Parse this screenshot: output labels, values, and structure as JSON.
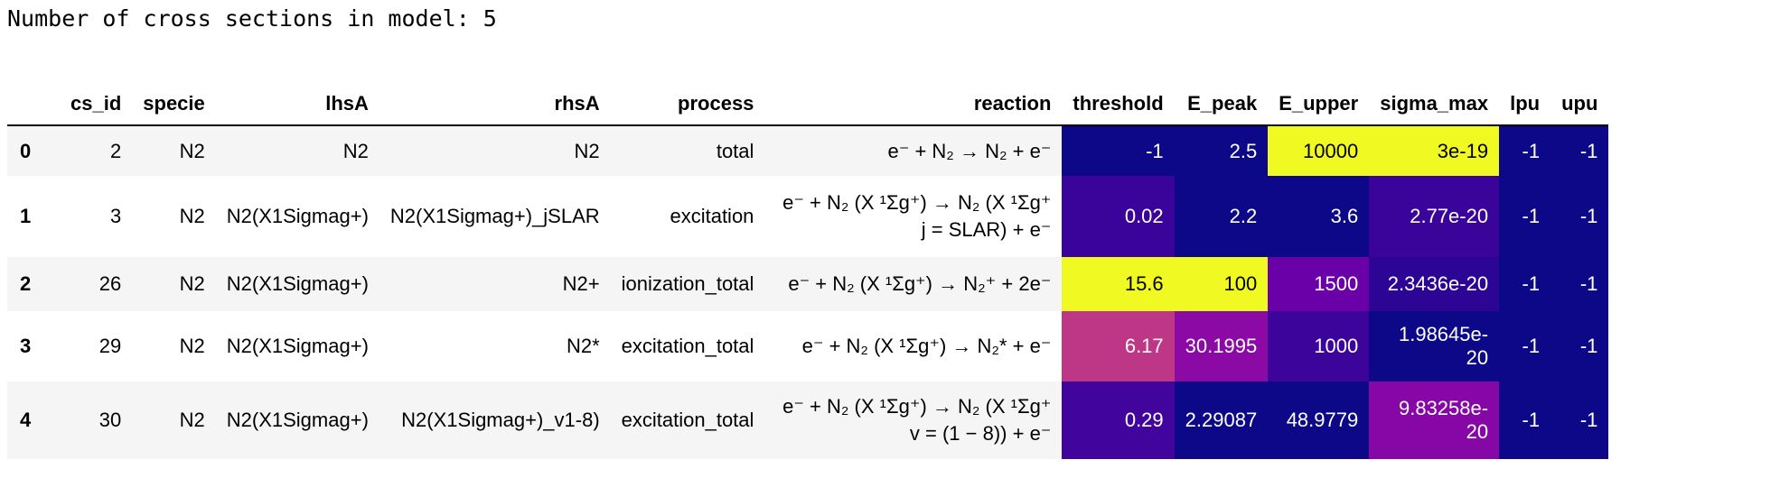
{
  "output": {
    "text": "Number of cross sections in model: 5"
  },
  "table": {
    "columns": [
      "",
      "cs_id",
      "specie",
      "lhsA",
      "rhsA",
      "process",
      "reaction",
      "threshold",
      "E_peak",
      "E_upper",
      "sigma_max",
      "lpu",
      "upu"
    ],
    "rows": [
      {
        "index": "0",
        "cs_id": "2",
        "specie": "N2",
        "lhsA": "N2",
        "rhsA": "N2",
        "process": "total",
        "reaction": "e⁻ + N₂ → N₂ + e⁻",
        "threshold": "-1",
        "E_peak": "2.5",
        "E_upper": "10000",
        "sigma_max": "3e-19",
        "lpu": "-1",
        "upu": "-1"
      },
      {
        "index": "1",
        "cs_id": "3",
        "specie": "N2",
        "lhsA": "N2(X1Sigmag+)",
        "rhsA": "N2(X1Sigmag+)_jSLAR",
        "process": "excitation",
        "reaction": "e⁻ + N₂ (X ¹Σg⁺) → N₂ (X ¹Σg⁺ j = SLAR) + e⁻",
        "threshold": "0.02",
        "E_peak": "2.2",
        "E_upper": "3.6",
        "sigma_max": "2.77e-20",
        "lpu": "-1",
        "upu": "-1"
      },
      {
        "index": "2",
        "cs_id": "26",
        "specie": "N2",
        "lhsA": "N2(X1Sigmag+)",
        "rhsA": "N2+",
        "process": "ionization_total",
        "reaction": "e⁻ + N₂ (X ¹Σg⁺) → N₂⁺ + 2e⁻",
        "threshold": "15.6",
        "E_peak": "100",
        "E_upper": "1500",
        "sigma_max": "2.3436e-20",
        "lpu": "-1",
        "upu": "-1"
      },
      {
        "index": "3",
        "cs_id": "29",
        "specie": "N2",
        "lhsA": "N2(X1Sigmag+)",
        "rhsA": "N2*",
        "process": "excitation_total",
        "reaction": "e⁻ + N₂ (X ¹Σg⁺) → N₂* + e⁻",
        "threshold": "6.17",
        "E_peak": "30.1995",
        "E_upper": "1000",
        "sigma_max": "1.98645e-20",
        "lpu": "-1",
        "upu": "-1"
      },
      {
        "index": "4",
        "cs_id": "30",
        "specie": "N2",
        "lhsA": "N2(X1Sigmag+)",
        "rhsA": "N2(X1Sigmag+)_v1-8)",
        "process": "excitation_total",
        "reaction": "e⁻ + N₂ (X ¹Σg⁺) → N₂ (X ¹Σg⁺ v = (1 − 8)) + e⁻",
        "threshold": "0.29",
        "E_peak": "2.29087",
        "E_upper": "48.9779",
        "sigma_max": "9.83258e-20",
        "lpu": "-1",
        "upu": "-1"
      }
    ]
  },
  "heatmap_colors": {
    "threshold": [
      "#0d0887",
      "#3a049a",
      "#f0f921",
      "#bd3786",
      "#41049d"
    ],
    "E_peak": [
      "#0d0887",
      "#0d0887",
      "#f0f921",
      "#8b0aa5",
      "#0d0887"
    ],
    "E_upper": [
      "#f0f921",
      "#0d0887",
      "#6a00a8",
      "#3d049b",
      "#0d0887"
    ],
    "sigma_max": [
      "#f0f921",
      "#3a049a",
      "#2c0594",
      "#0d0887",
      "#8606a6"
    ],
    "lpu": [
      "#0d0887",
      "#0d0887",
      "#0d0887",
      "#0d0887",
      "#0d0887"
    ],
    "upu": [
      "#0d0887",
      "#0d0887",
      "#0d0887",
      "#0d0887",
      "#0d0887"
    ]
  }
}
